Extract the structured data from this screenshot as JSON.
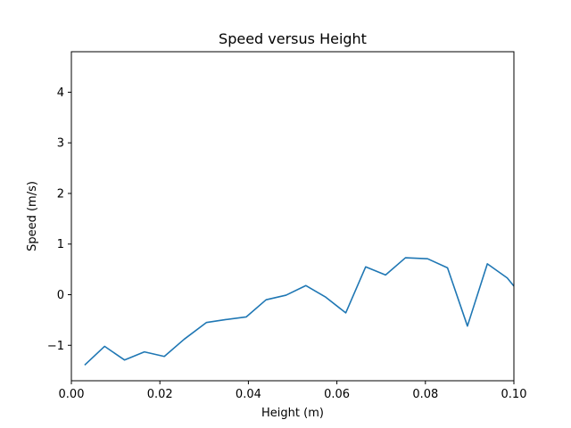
{
  "chart_data": {
    "type": "line",
    "title": "Speed versus Height",
    "xlabel": "Height (m)",
    "ylabel": "Speed (m/s)",
    "xlim": [
      0.0,
      0.1
    ],
    "ylim": [
      -1.7,
      4.8
    ],
    "xticks": [
      0.0,
      0.02,
      0.04,
      0.06,
      0.08,
      0.1
    ],
    "xtick_labels": [
      "0.00",
      "0.02",
      "0.04",
      "0.06",
      "0.08",
      "0.10"
    ],
    "yticks": [
      -1,
      0,
      1,
      2,
      3,
      4
    ],
    "ytick_labels": [
      "−1",
      "0",
      "1",
      "2",
      "3",
      "4"
    ],
    "grid": false,
    "color": "#1f77b4",
    "x": [
      0.003,
      0.0075,
      0.012,
      0.0165,
      0.021,
      0.0255,
      0.0305,
      0.035,
      0.0395,
      0.044,
      0.0485,
      0.053,
      0.0575,
      0.062,
      0.0665,
      0.071,
      0.0755,
      0.0805,
      0.085,
      0.0895,
      0.094,
      0.0985,
      0.1
    ],
    "y": [
      -1.39,
      -1.02,
      -1.29,
      -1.13,
      -1.22,
      -0.88,
      -0.55,
      -0.49,
      -0.44,
      -0.1,
      -0.01,
      0.18,
      -0.05,
      -0.36,
      0.55,
      0.39,
      0.73,
      0.71,
      0.53,
      -0.62,
      0.61,
      0.33,
      0.17
    ]
  }
}
